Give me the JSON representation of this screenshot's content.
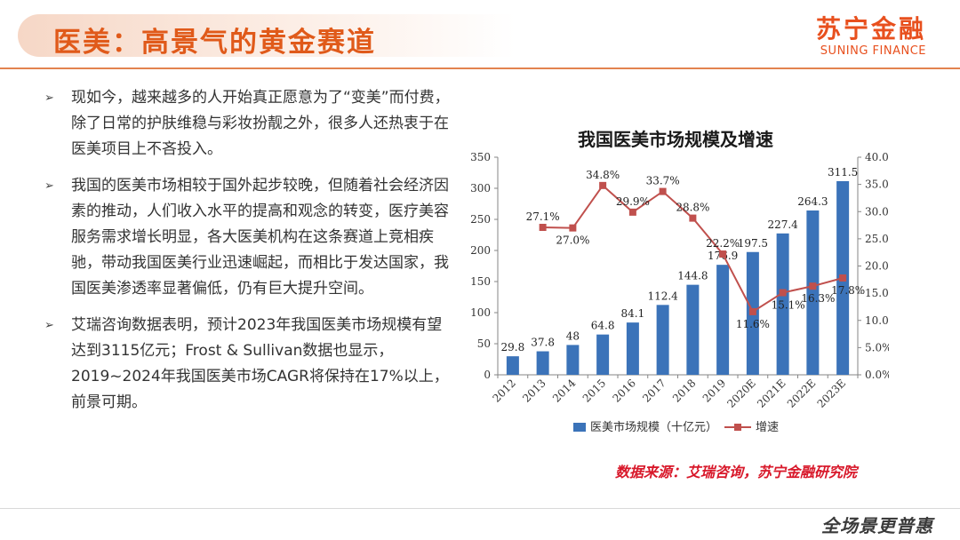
{
  "header": {
    "title": "医美：高景气的黄金赛道",
    "logo_cn": "苏宁金融",
    "logo_en": "SUNING FINANCE"
  },
  "bullets": [
    "现如今，越来越多的人开始真正愿意为了“变美”而付费，除了日常的护肤维稳与彩妆扮靓之外，很多人还热衷于在医美项目上不吝投入。",
    "我国的医美市场相较于国外起步较晚，但随着社会经济因素的推动，人们收入水平的提高和观念的转变，医疗美容服务需求增长明显，各大医美机构在这条赛道上竞相疾驰，带动我国医美行业迅速崛起，而相比于发达国家，我国医美渗透率显著偏低，仍有巨大提升空间。",
    "艾瑞咨询数据表明，预计2023年我国医美市场规模有望达到3115亿元；Frost & Sullivan数据也显示，2019~2024年我国医美市场CAGR将保持在17%以上，前景可期。"
  ],
  "bullet_marker": "➢",
  "chart_data": {
    "type": "bar",
    "title": "我国医美市场规模及增速",
    "categories": [
      "2012",
      "2013",
      "2014",
      "2015",
      "2016",
      "2017",
      "2018",
      "2019",
      "2020E",
      "2021E",
      "2022E",
      "2023E"
    ],
    "series": [
      {
        "name": "医美市场规模（十亿元）",
        "type": "bar",
        "axis": "left",
        "values": [
          29.8,
          37.8,
          48,
          64.8,
          84.1,
          112.4,
          144.8,
          176.9,
          197.5,
          227.4,
          264.3,
          311.5
        ],
        "labels": [
          "29.8",
          "37.8",
          "48",
          "64.8",
          "84.1",
          "112.4",
          "144.8",
          "176.9",
          "197.5",
          "227.4",
          "264.3",
          "311.5"
        ]
      },
      {
        "name": "增速",
        "type": "line",
        "axis": "right",
        "x": [
          "2013",
          "2014",
          "2015",
          "2016",
          "2017",
          "2018",
          "2019",
          "2020E",
          "2021E",
          "2022E",
          "2023E"
        ],
        "values": [
          27.1,
          27.0,
          34.8,
          29.9,
          33.7,
          28.8,
          22.2,
          11.6,
          15.1,
          16.3,
          17.8
        ],
        "labels": [
          "27.1%",
          "27.0%",
          "34.8%",
          "29.9%",
          "33.7%",
          "28.8%",
          "22.2%",
          "11.6%",
          "15.1%",
          "16.3%",
          "17.8%"
        ]
      }
    ],
    "ylim_left": [
      0,
      350
    ],
    "ylim_right": [
      0,
      40
    ],
    "yticks_left": [
      "0",
      "50",
      "100",
      "150",
      "200",
      "250",
      "300",
      "350"
    ],
    "yticks_right": [
      "0.0%",
      "5.0%",
      "10.0%",
      "15.0%",
      "20.0%",
      "25.0%",
      "30.0%",
      "35.0%",
      "40.0%"
    ],
    "legend_position": "bottom",
    "grid": false,
    "colors": {
      "bar": "#3b73b9",
      "line": "#c0504d"
    }
  },
  "source": "数据来源：艾瑞咨询，苏宁金融研究院",
  "footer_logo": "全场景更普惠"
}
